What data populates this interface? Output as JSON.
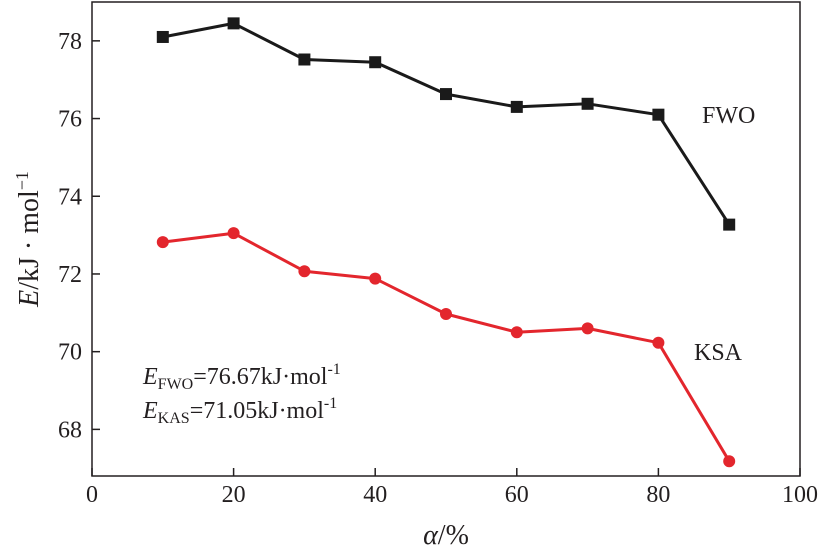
{
  "chart_data": {
    "type": "line",
    "x": [
      10,
      20,
      30,
      40,
      50,
      60,
      70,
      80,
      90
    ],
    "series": [
      {
        "name": "FWO",
        "color": "#1a1a1a",
        "marker": "square",
        "values": [
          78.1,
          78.45,
          77.52,
          77.45,
          76.63,
          76.3,
          76.38,
          76.1,
          73.27
        ]
      },
      {
        "name": "KSA",
        "color": "#e3262d",
        "marker": "circle",
        "values": [
          72.82,
          73.05,
          72.07,
          71.88,
          70.97,
          70.5,
          70.6,
          70.23,
          67.18
        ]
      }
    ],
    "xlim": [
      0,
      100
    ],
    "ylim": [
      66.8,
      79
    ],
    "xticks": [
      0,
      20,
      40,
      60,
      80,
      100
    ],
    "yticks": [
      68,
      70,
      72,
      74,
      76,
      78
    ],
    "xlabel": {
      "italic": "α",
      "rest": "/%"
    },
    "ylabel": {
      "italic": "E",
      "rest": "/kJ · mol",
      "sup": "−1"
    },
    "grid": false,
    "legend": "inline labels at line ends"
  },
  "annotations": {
    "fwo": {
      "main": "E",
      "sub": "FWO",
      "rest": "=76.67kJ·mol",
      "sup": "-1"
    },
    "kas": {
      "main": "E",
      "sub": "KAS",
      "rest": "=71.05kJ·mol",
      "sup": "-1"
    }
  }
}
